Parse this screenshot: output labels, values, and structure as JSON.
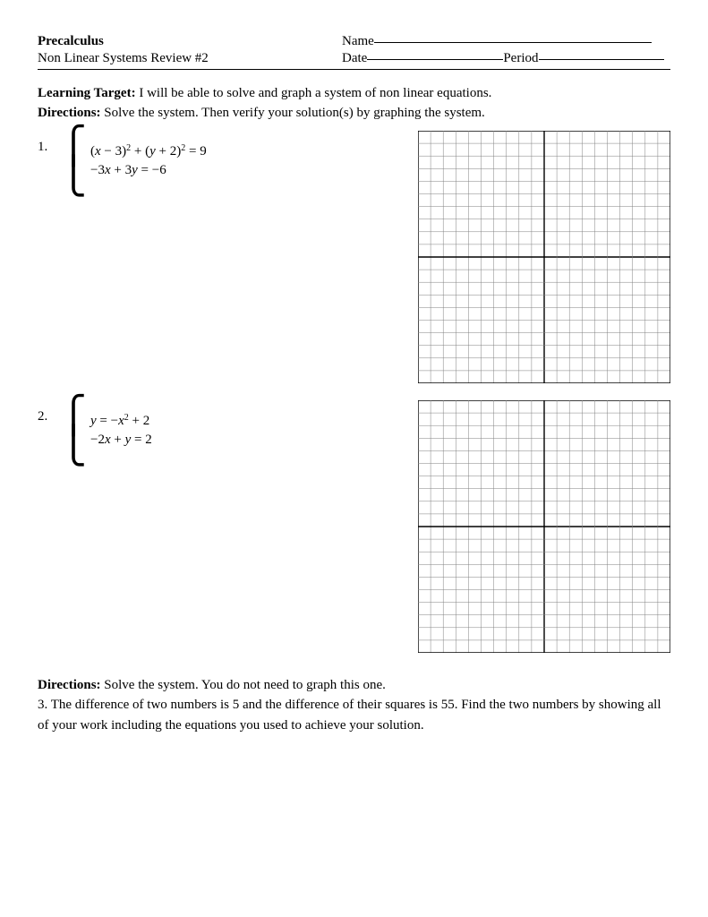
{
  "header": {
    "course": "Precalculus",
    "subtitle": "Non Linear Systems Review #2",
    "name_label": "Name",
    "date_label": "Date",
    "period_label": "Period"
  },
  "intro": {
    "learning_target_label": "Learning Target:",
    "learning_target_text": "  I will be able to solve and graph a system of non linear equations.",
    "directions_label": "Directions:",
    "directions_text": "  Solve the system.  Then verify your solution(s) by graphing the system."
  },
  "q1": {
    "num": "1.",
    "eq1_pre": "(",
    "eq1_x": "x",
    "eq1_mid1": " − 3)",
    "eq1_sup1": "2",
    "eq1_plus": " + (",
    "eq1_y": "y",
    "eq1_mid2": " + 2)",
    "eq1_sup2": "2",
    "eq1_eq": " = 9",
    "eq2_pre": "−3",
    "eq2_x": "x",
    "eq2_mid": " + 3",
    "eq2_y": "y",
    "eq2_end": " = −6"
  },
  "q2": {
    "num": "2.",
    "eq1_y": "y",
    "eq1_mid": " = −",
    "eq1_x": "x",
    "eq1_sup": "2",
    "eq1_end": " + 2",
    "eq2_pre": "−2",
    "eq2_x": "x",
    "eq2_mid": " + ",
    "eq2_y": "y",
    "eq2_end": " = 2"
  },
  "section2": {
    "directions_label": "Directions:",
    "directions_text": "  Solve the system.  You do not need to graph this one.",
    "q3_text": "3.  The difference of two numbers is 5 and the difference of their squares is 55.  Find the two numbers by showing all of your work including the equations you used to achieve your solution."
  },
  "grid": {
    "size": 282,
    "cells": 20,
    "minor_color": "#808080",
    "major_color": "#000000",
    "minor_width": 0.5,
    "major_width": 1.4
  }
}
